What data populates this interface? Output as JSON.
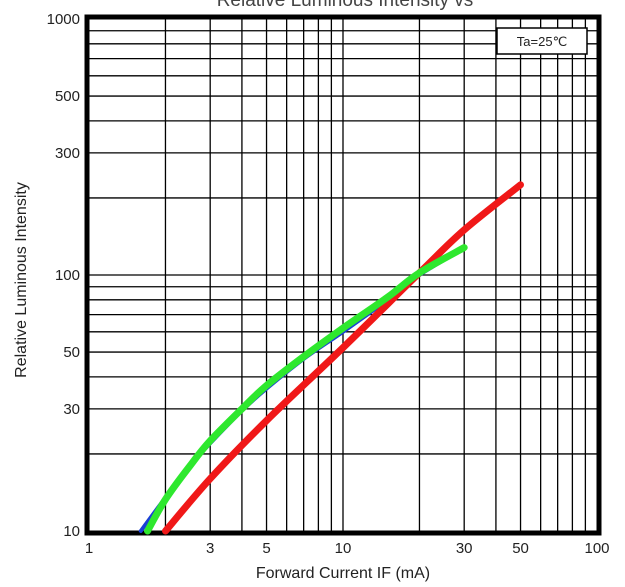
{
  "chart_data": {
    "type": "line",
    "title": "Relative Luminous Intensity vs",
    "xlabel": "Forward Current IF (mA)",
    "ylabel": "Relative Luminous Intensity",
    "x_scale": "log",
    "y_scale": "log",
    "xlim": [
      1,
      100
    ],
    "ylim": [
      10,
      1000
    ],
    "x_tick_labels": [
      "1",
      "3",
      "5",
      "10",
      "30",
      "50",
      "100"
    ],
    "y_tick_labels": [
      "1000",
      "500",
      "300",
      "100",
      "50",
      "30",
      "10"
    ],
    "grid": true,
    "annotation": "Ta=25℃",
    "series": [
      {
        "color": "#1a3fd6",
        "x": [
          1.6,
          2.0,
          2.5,
          3.0,
          4.0,
          5.0,
          7.0,
          10,
          15,
          20,
          30
        ],
        "y": [
          10,
          13.5,
          18,
          22,
          29.5,
          36,
          47,
          60,
          80,
          100,
          127
        ]
      },
      {
        "color": "#f01818",
        "x": [
          2.0,
          3.0,
          5.0,
          10,
          20,
          30,
          50
        ],
        "y": [
          10,
          16,
          27,
          52,
          102,
          150,
          225
        ]
      },
      {
        "color": "#2ee82e",
        "x": [
          1.7,
          2.0,
          2.5,
          3.0,
          4.0,
          5.0,
          7.0,
          10,
          15,
          20,
          30
        ],
        "y": [
          10,
          13.3,
          18,
          22.5,
          30,
          37,
          48,
          62,
          82,
          102,
          128
        ]
      }
    ]
  }
}
